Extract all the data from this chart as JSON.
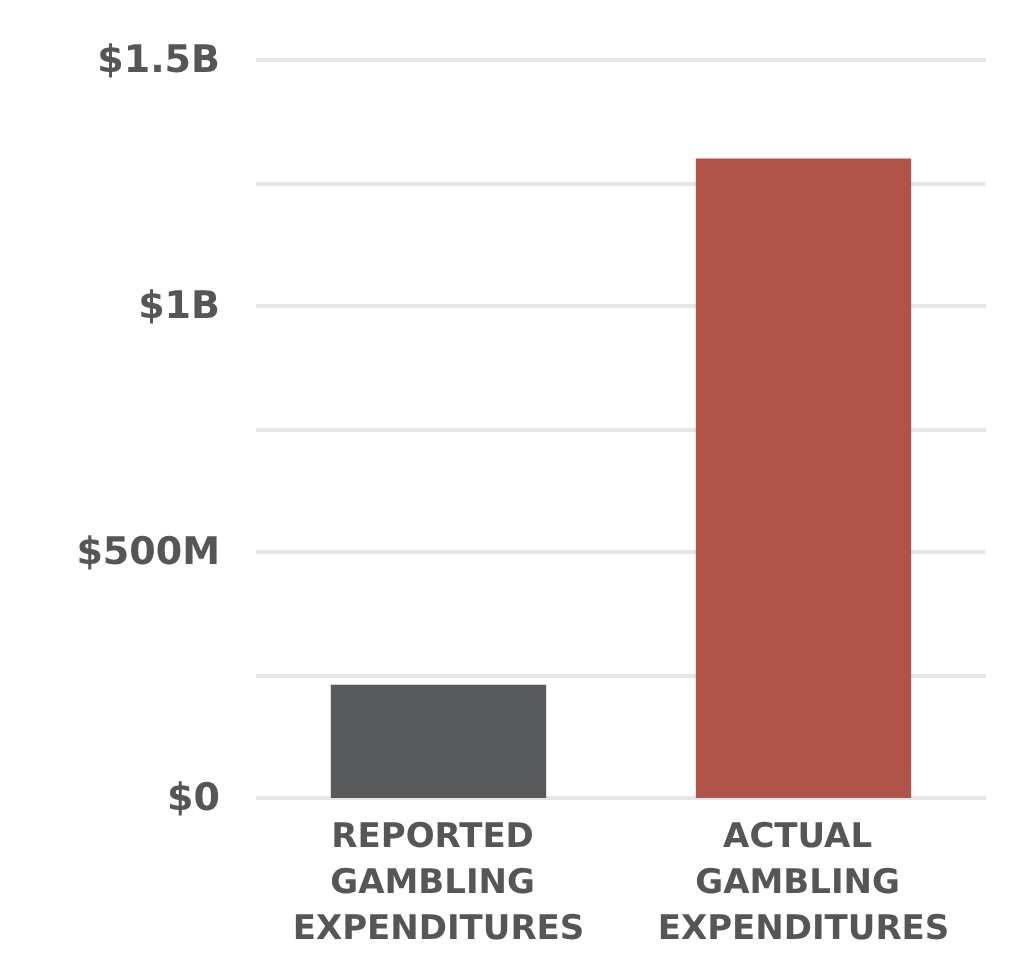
{
  "chart_data": {
    "type": "bar",
    "categories": [
      "REPORTED GAMBLING EXPENDITURES",
      "ACTUAL GAMBLING EXPENDITURES"
    ],
    "values": [
      230000000,
      1300000000
    ],
    "colors": [
      "#58595b",
      "#b0544a"
    ],
    "ylim": [
      0,
      1500000000
    ],
    "yticks": [
      {
        "value": 0,
        "label": "$0"
      },
      {
        "value": 250000000,
        "label": null
      },
      {
        "value": 500000000,
        "label": "$500M"
      },
      {
        "value": 750000000,
        "label": null
      },
      {
        "value": 1000000000,
        "label": "$1B"
      },
      {
        "value": 1250000000,
        "label": null
      },
      {
        "value": 1500000000,
        "label": "$1.5B"
      }
    ],
    "grid": "y"
  }
}
